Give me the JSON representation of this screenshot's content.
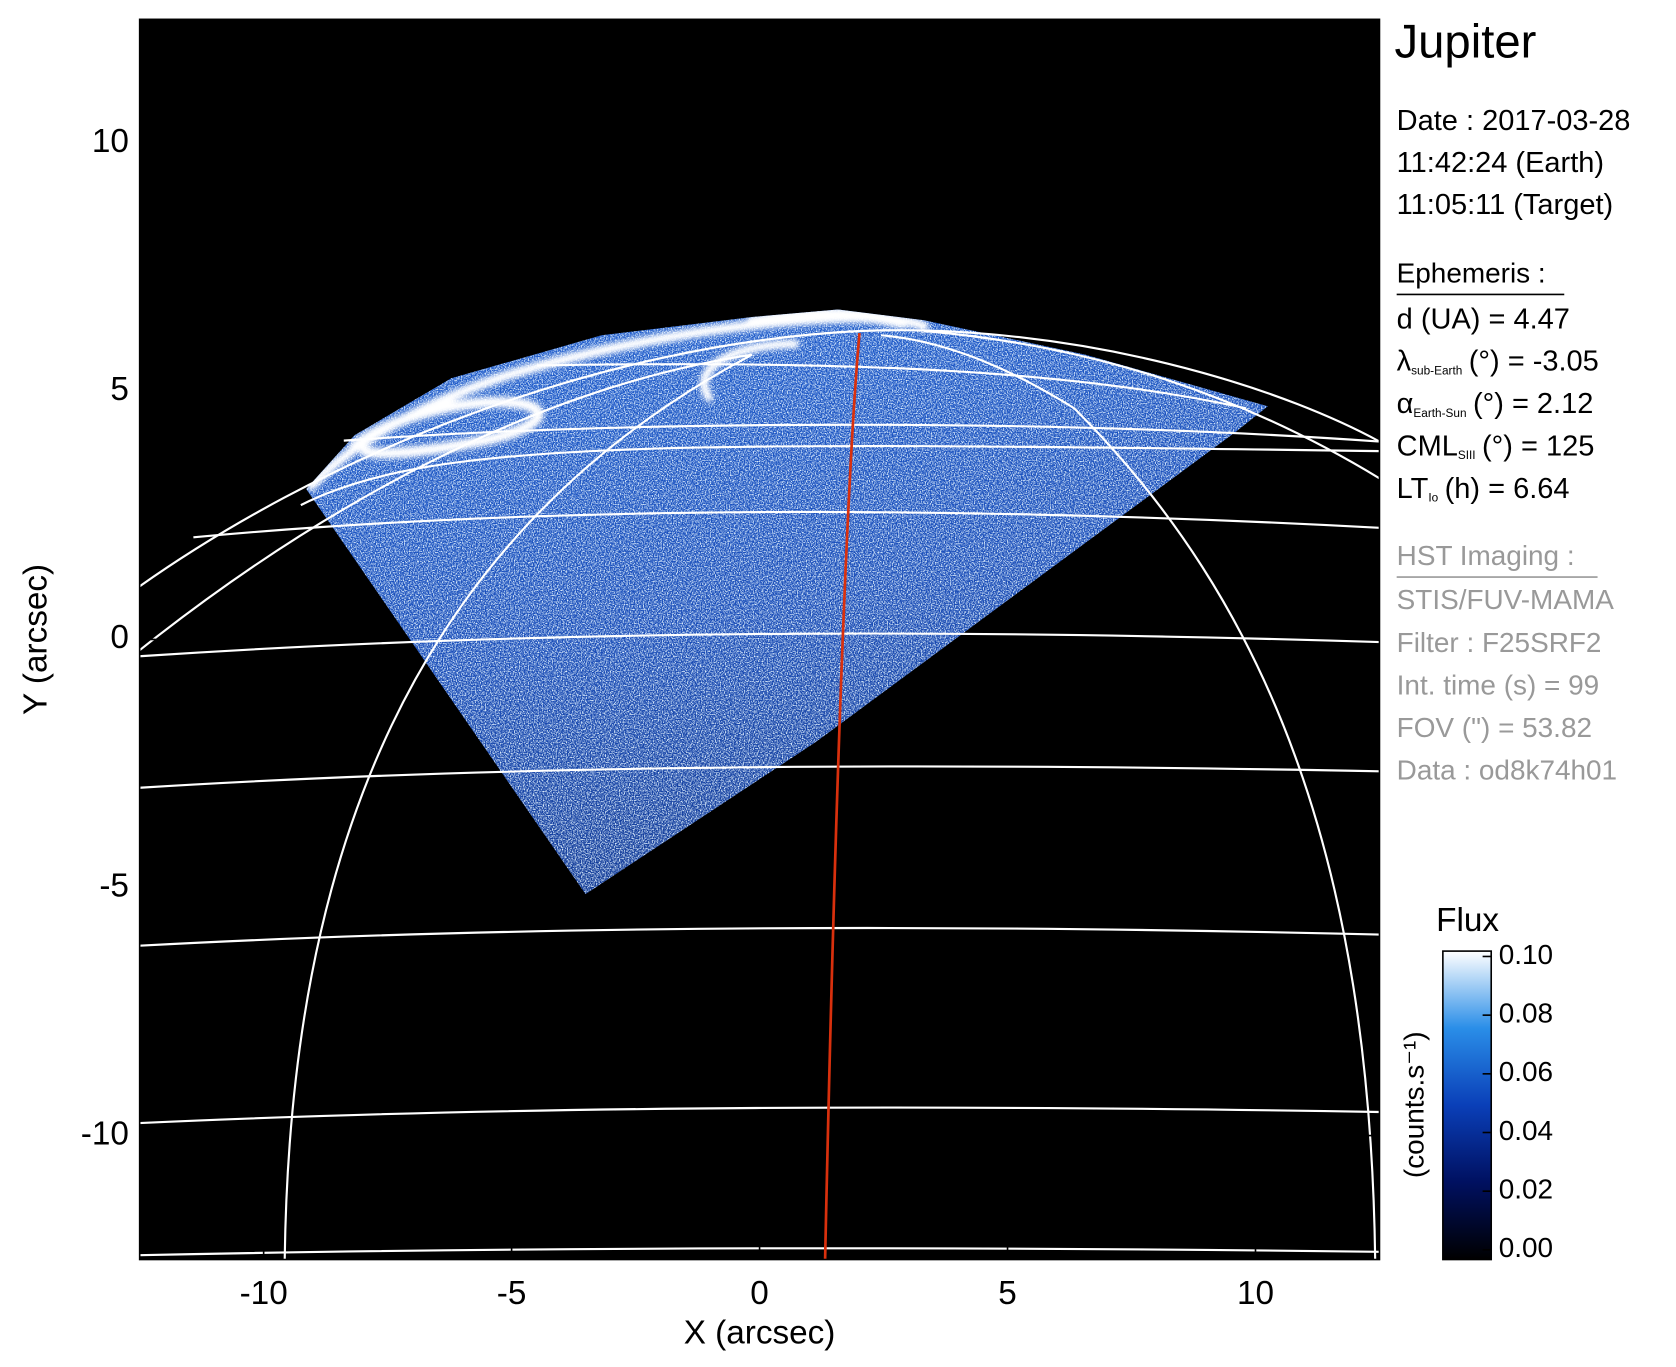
{
  "chart_data": {
    "type": "image",
    "xlabel": "X (arcsec)",
    "ylabel": "Y (arcsec)",
    "xlim": [
      -12.5,
      12.5
    ],
    "ylim": [
      -12.5,
      12.5
    ],
    "xticks": [
      -10,
      -5,
      0,
      5,
      10
    ],
    "yticks": [
      -10,
      -5,
      0,
      5,
      10
    ],
    "colorbar": {
      "title": "Flux",
      "label": "(counts.s⁻¹)",
      "lim": [
        0,
        0.1
      ],
      "ticks": [
        {
          "value": 0,
          "label": "0.00"
        },
        {
          "value": 0.02,
          "label": "0.02"
        },
        {
          "value": 0.04,
          "label": "0.04"
        },
        {
          "value": 0.06,
          "label": "0.06"
        },
        {
          "value": 0.08,
          "label": "0.08"
        },
        {
          "value": 0.1,
          "label": "0.10"
        }
      ]
    }
  },
  "panel": {
    "title": "Jupiter",
    "date": [
      "Date : 2017-03-28",
      "11:42:24 (Earth)",
      "11:05:11 (Target)"
    ],
    "ephemeris": {
      "heading": "Ephemeris :",
      "rows": [
        {
          "text": "d (UA)    = 4.47"
        },
        {
          "symbol": "λ",
          "sub": "sub-Earth",
          "text": "(°) = -3.05"
        },
        {
          "symbol": "α",
          "sub": "Earth-Sun",
          "text": "(°) = 2.12"
        },
        {
          "symbol": "CML",
          "sub": "SIII",
          "text": "(°) = 125"
        },
        {
          "symbol": "LT",
          "sub": "Io",
          "text": "(h) = 6.64"
        }
      ]
    },
    "imaging": {
      "heading": "HST Imaging :",
      "lines": [
        "STIS/FUV-MAMA",
        "Filter : F25SRF2",
        "Int. time (s) = 99",
        "FOV (\") = 53.82",
        "Data : od8k74h01"
      ]
    }
  }
}
